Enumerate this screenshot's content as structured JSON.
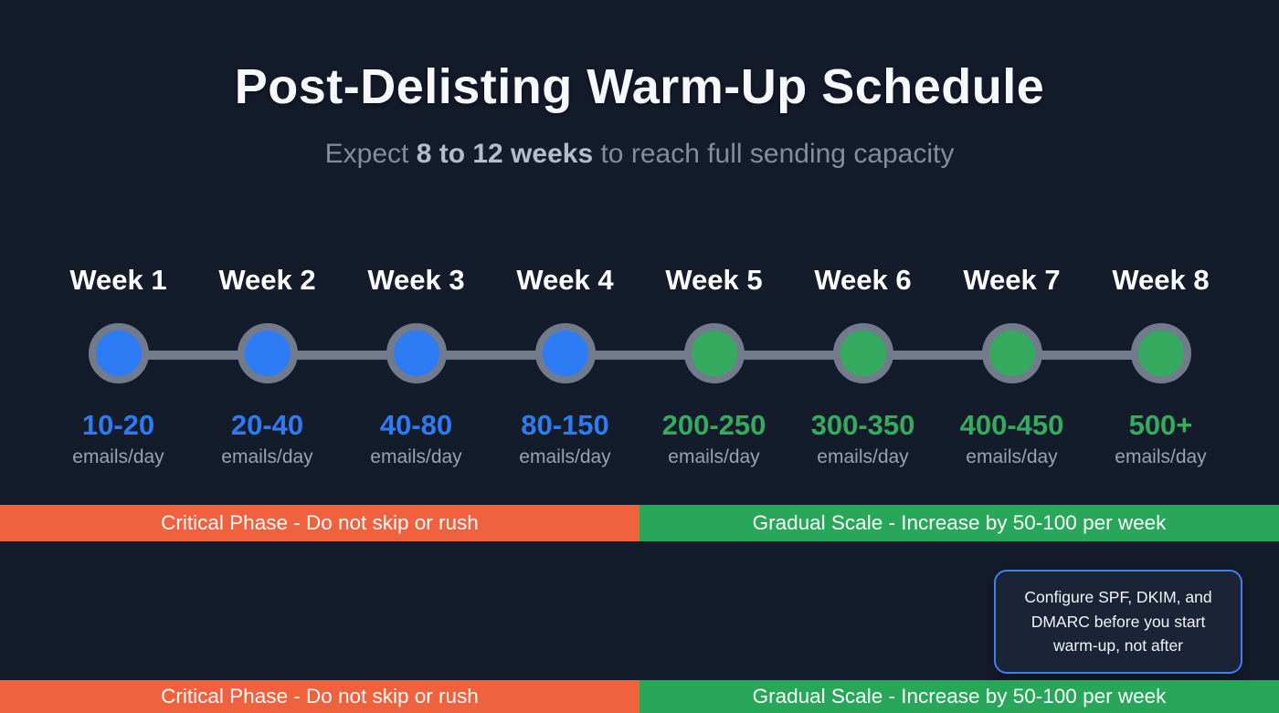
{
  "title": "Post-Delisting Warm-Up Schedule",
  "subtitle": {
    "prefix": "Expect ",
    "bold": "8 to 12 weeks",
    "suffix": " to reach full sending capacity"
  },
  "timeline": {
    "weeks": [
      {
        "label": "Week 1",
        "volume": "10-20",
        "unit": "emails/day",
        "phase": "critical"
      },
      {
        "label": "Week 2",
        "volume": "20-40",
        "unit": "emails/day",
        "phase": "critical"
      },
      {
        "label": "Week 3",
        "volume": "40-80",
        "unit": "emails/day",
        "phase": "critical"
      },
      {
        "label": "Week 4",
        "volume": "80-150",
        "unit": "emails/day",
        "phase": "critical"
      },
      {
        "label": "Week 5",
        "volume": "200-250",
        "unit": "emails/day",
        "phase": "gradual"
      },
      {
        "label": "Week 6",
        "volume": "300-350",
        "unit": "emails/day",
        "phase": "gradual"
      },
      {
        "label": "Week 7",
        "volume": "400-450",
        "unit": "emails/day",
        "phase": "gradual"
      },
      {
        "label": "Week 8",
        "volume": "500+",
        "unit": "emails/day",
        "phase": "gradual"
      }
    ]
  },
  "banners": {
    "critical": "Critical Phase - Do not skip or rush",
    "gradual": "Gradual Scale - Increase by 50-100 per week"
  },
  "note": {
    "lines": [
      "Configure SPF, DKIM, and",
      "DMARC before you start",
      "warm-up, not after"
    ]
  },
  "colors": {
    "background": "#141b2b",
    "accent_blue": "#2e7cf5",
    "accent_green": "#36ab5f",
    "banner_orange": "#f0613e",
    "banner_green": "#28a65a",
    "ring_gray": "#717b8b",
    "note_border": "#3f7ff0"
  }
}
